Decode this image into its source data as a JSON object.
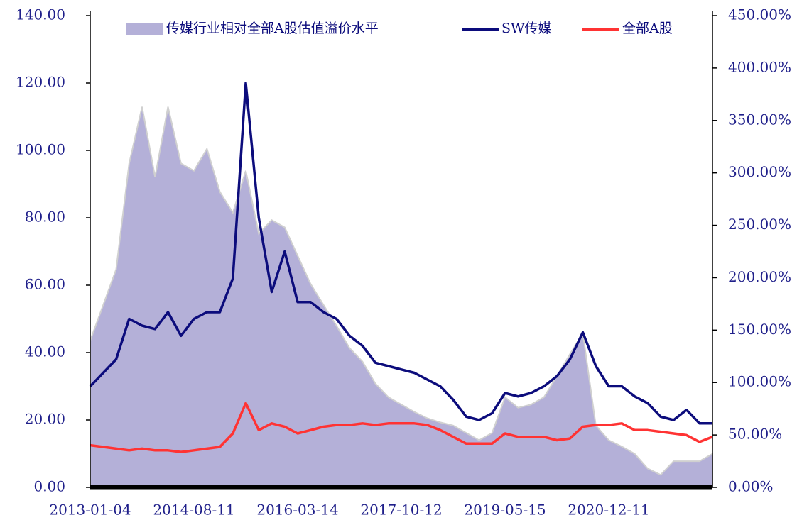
{
  "chart_data": {
    "type": "line",
    "categories": [
      "2013-01-04",
      null,
      null,
      null,
      null,
      null,
      null,
      null,
      "2014-08-11",
      null,
      null,
      null,
      null,
      null,
      null,
      null,
      "2016-03-14",
      null,
      null,
      null,
      null,
      null,
      null,
      null,
      "2017-10-12",
      null,
      null,
      null,
      null,
      null,
      null,
      null,
      "2019-05-15",
      null,
      null,
      null,
      null,
      null,
      null,
      null,
      "2020-12-11",
      null,
      null,
      null,
      null,
      null,
      null,
      null,
      null
    ],
    "series": [
      {
        "name": "传媒行业相对全部A股估值溢价水平",
        "type": "area",
        "axis": "y2",
        "color": "#b4b0d8",
        "values": [
          140,
          174,
          208,
          309,
          363,
          296,
          363,
          309,
          302,
          323,
          282,
          262,
          302,
          242,
          255,
          248,
          221,
          194,
          174,
          154,
          133,
          120,
          99,
          86,
          79,
          72,
          66,
          62,
          59,
          52,
          45,
          52,
          86,
          76,
          79,
          86,
          106,
          127,
          147,
          59,
          45,
          39,
          32,
          18,
          12,
          25,
          25,
          25,
          32
        ]
      },
      {
        "name": "SW传媒",
        "type": "line",
        "color": "#0c0c7c",
        "values": [
          30,
          34,
          38,
          50,
          48,
          47,
          52,
          45,
          50,
          52,
          52,
          62,
          120,
          80,
          58,
          70,
          55,
          55,
          52,
          50,
          45,
          42,
          37,
          36,
          35,
          34,
          32,
          30,
          26,
          21,
          20,
          22,
          28,
          27,
          28,
          30,
          33,
          38,
          46,
          36,
          30,
          30,
          27,
          25,
          21,
          20,
          23,
          19,
          19
        ]
      },
      {
        "name": "全部A股",
        "type": "line",
        "color": "#ff3333",
        "values": [
          12.5,
          12,
          11.5,
          11,
          11.5,
          11,
          11,
          10.5,
          11,
          11.5,
          12,
          16,
          25,
          17,
          19,
          18,
          16,
          17,
          18,
          18.5,
          18.5,
          19,
          18.5,
          19,
          19,
          19,
          18.5,
          17,
          15,
          13,
          13,
          13,
          16,
          15,
          15,
          15,
          14,
          14.5,
          18,
          18.5,
          18.5,
          19,
          17,
          17,
          16.5,
          16,
          15.5,
          13.5,
          15
        ]
      }
    ],
    "ylim": [
      0,
      140
    ],
    "yticks": [
      {
        "value": 0,
        "label": "0.00"
      },
      {
        "value": 20,
        "label": "20.00"
      },
      {
        "value": 40,
        "label": "40.00"
      },
      {
        "value": 60,
        "label": "60.00"
      },
      {
        "value": 80,
        "label": "80.00"
      },
      {
        "value": 100,
        "label": "100.00"
      },
      {
        "value": 120,
        "label": "120.00"
      },
      {
        "value": 140,
        "label": "140.00"
      }
    ],
    "y2lim": [
      0,
      450
    ],
    "y2ticks": [
      {
        "value": 0,
        "label": "0.00%"
      },
      {
        "value": 50,
        "label": "50.00%"
      },
      {
        "value": 100,
        "label": "100.00%"
      },
      {
        "value": 150,
        "label": "150.00%"
      },
      {
        "value": 200,
        "label": "200.00%"
      },
      {
        "value": 250,
        "label": "250.00%"
      },
      {
        "value": 300,
        "label": "300.00%"
      },
      {
        "value": 350,
        "label": "350.00%"
      },
      {
        "value": 400,
        "label": "400.00%"
      },
      {
        "value": 450,
        "label": "450.00%"
      }
    ],
    "legend": "top"
  }
}
